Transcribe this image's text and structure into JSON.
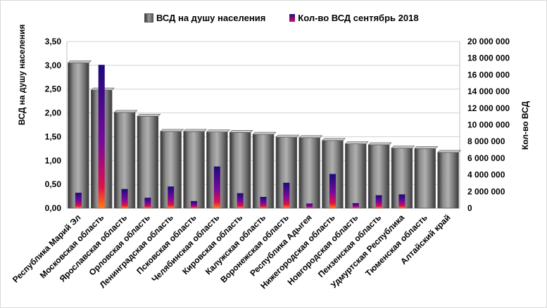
{
  "chart_data": {
    "type": "bar",
    "title": "",
    "legend_position": "top",
    "categories": [
      "Республика  Марий Эл",
      "Московская область",
      "Ярославская область",
      "Орловская область",
      "Ленинградская область",
      "Псковская область",
      "Челябинская область",
      "Кировская область",
      "Калужская область",
      "Воронежская область",
      "Республика Адыгея",
      "Нижегородская область",
      "Новгородская область",
      "Пензенская область",
      "Удмуртская Республика",
      "Тюменская область",
      "Алтайский край"
    ],
    "series": [
      {
        "name": "ВСД  на душу населения",
        "axis": "left",
        "color": "#7f7f7f",
        "values": [
          3.05,
          2.48,
          2.01,
          1.93,
          1.61,
          1.61,
          1.6,
          1.59,
          1.55,
          1.49,
          1.48,
          1.42,
          1.35,
          1.33,
          1.26,
          1.25,
          1.17
        ]
      },
      {
        "name": "Кол-во ВСД сентябрь  2018",
        "axis": "right",
        "color": "#4b0fa0",
        "values": [
          1850000,
          17200000,
          2300000,
          1250000,
          2600000,
          850000,
          5000000,
          1800000,
          1350000,
          3050000,
          550000,
          4100000,
          600000,
          1550000,
          1650000,
          0,
          0
        ]
      }
    ],
    "ylabel": "ВСД  на душу населения",
    "y2label": "Кол-во ВСД",
    "ylim": [
      0,
      3.5
    ],
    "y2lim": [
      0,
      20000000
    ],
    "yticks": [
      "0,00",
      "0,50",
      "1,00",
      "1,50",
      "2,00",
      "2,50",
      "3,00",
      "3,50"
    ],
    "y2ticks": [
      "0",
      "2 000 000",
      "4 000 000",
      "6 000 000",
      "8 000 000",
      "10 000 000",
      "12 000 000",
      "14 000 000",
      "16 000 000",
      "18 000 000",
      "20 000 000"
    ],
    "grid": true
  }
}
